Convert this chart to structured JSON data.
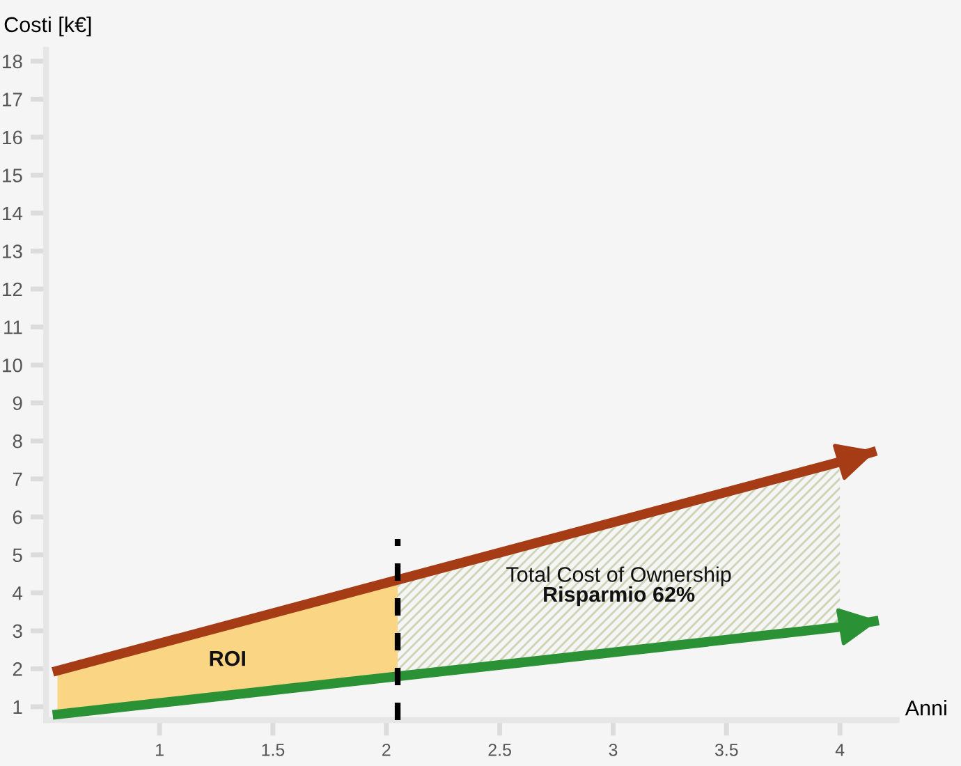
{
  "chart_data": {
    "type": "line",
    "xlabel": "Anni",
    "ylabel": "Costi [k€]",
    "xlim": [
      0.5,
      4.25
    ],
    "ylim": [
      0.65,
      18.3
    ],
    "xticks": [
      1,
      1.5,
      2,
      2.5,
      3,
      3.5,
      4
    ],
    "yticks": [
      1,
      2,
      3,
      4,
      5,
      6,
      7,
      8,
      9,
      10,
      11,
      12,
      13,
      14,
      15,
      16,
      17,
      18
    ],
    "grid": false,
    "legend": false,
    "series": [
      {
        "color": "#a63c15",
        "x": [
          0.55,
          4.0,
          4.14
        ],
        "values": [
          1.95,
          7.45,
          7.7
        ]
      },
      {
        "color": "#2a9235",
        "x": [
          0.55,
          4.0,
          4.15
        ],
        "values": [
          0.8,
          3.1,
          3.25
        ]
      }
    ],
    "ref_lines": [
      {
        "axis": "x",
        "value": 2.05,
        "color": "#000000",
        "line_style": "dashed"
      }
    ],
    "annotations": [
      "ROI",
      "Total Cost of Ownership",
      "Risparmio 62%"
    ]
  }
}
